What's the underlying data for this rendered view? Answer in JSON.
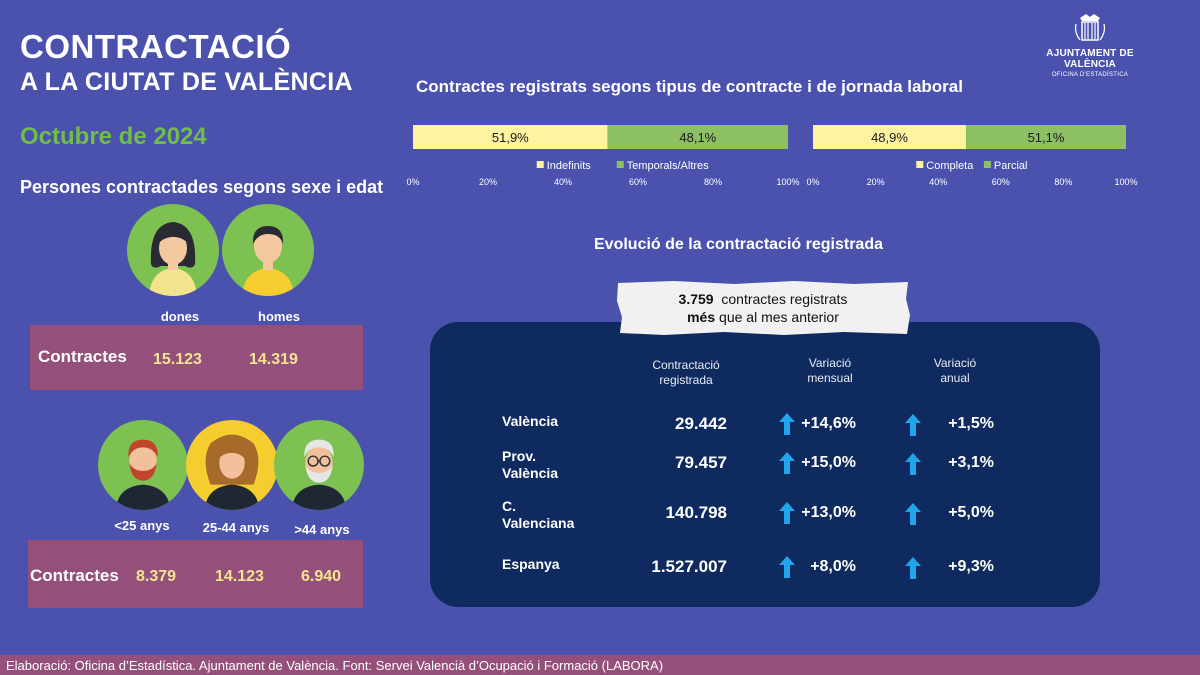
{
  "header": {
    "title_line1": "CONTRACTACIÓ",
    "title_line2": "A LA CIUTAT DE VALÈNCIA",
    "period": "Octubre de 2024"
  },
  "logo": {
    "name": "AJUNTAMENT DE VALÈNCIA",
    "subtitle": "OFICINA D'ESTADÍSTICA"
  },
  "sexe_section": {
    "title": "Persones contractades segons sexe i edat",
    "labels": [
      "dones",
      "homes"
    ],
    "row_label": "Contractes",
    "values": [
      "15.123",
      "14.319"
    ]
  },
  "edat_section": {
    "labels": [
      "<25 anys",
      "25-44 anys",
      ">44 anys"
    ],
    "row_label": "Contractes",
    "values": [
      "8.379",
      "14.123",
      "6.940"
    ]
  },
  "colors": {
    "background": "#4a52ae",
    "yellow": "#fff2a0",
    "green": "#8cc063",
    "panel": "#0e2a5e",
    "accent_box": "#94507a",
    "arrow": "#22a4ec"
  },
  "chart_data": [
    {
      "type": "bar",
      "orientation": "horizontal-stacked-100",
      "title": "Contractes registrats segons tipus de contracte i de jornada laboral",
      "series": [
        {
          "name": "Indefinits",
          "values": [
            51.9
          ],
          "label": "51,9%"
        },
        {
          "name": "Temporals/Altres",
          "values": [
            48.1
          ],
          "label": "48,1%"
        }
      ],
      "xticks": [
        "0%",
        "20%",
        "40%",
        "60%",
        "80%",
        "100%"
      ],
      "xlim": [
        0,
        100
      ],
      "legend": "bottom"
    },
    {
      "type": "bar",
      "orientation": "horizontal-stacked-100",
      "series": [
        {
          "name": "Completa",
          "values": [
            48.9
          ],
          "label": "48,9%"
        },
        {
          "name": "Parcial",
          "values": [
            51.1
          ],
          "label": "51,1%"
        }
      ],
      "xticks": [
        "0%",
        "20%",
        "40%",
        "60%",
        "80%",
        "100%"
      ],
      "xlim": [
        0,
        100
      ],
      "legend": "bottom"
    }
  ],
  "evolution": {
    "title": "Evolució de la contractació registrada",
    "note_value": "3.759",
    "note_text": "contractes registrats",
    "note_bold": "més",
    "note_rest": "que al mes anterior",
    "columns": [
      "Contractació registrada",
      "Variació mensual",
      "Variació anual"
    ],
    "rows": [
      {
        "label": [
          "València"
        ],
        "value": "29.442",
        "monthly": "+14,6%",
        "annual": "+1,5%"
      },
      {
        "label": [
          "Prov.",
          "València"
        ],
        "value": "79.457",
        "monthly": "+15,0%",
        "annual": "+3,1%"
      },
      {
        "label": [
          "C.",
          "Valenciana"
        ],
        "value": "140.798",
        "monthly": "+13,0%",
        "annual": "+5,0%"
      },
      {
        "label": [
          "Espanya"
        ],
        "value": "1.527.007",
        "monthly": "+8,0%",
        "annual": "+9,3%"
      }
    ]
  },
  "footer": "Elaboració: Oficina d’Estadística.  Ajuntament de València. Font: Servei Valencià d’Ocupació i Formació (LABORA)"
}
